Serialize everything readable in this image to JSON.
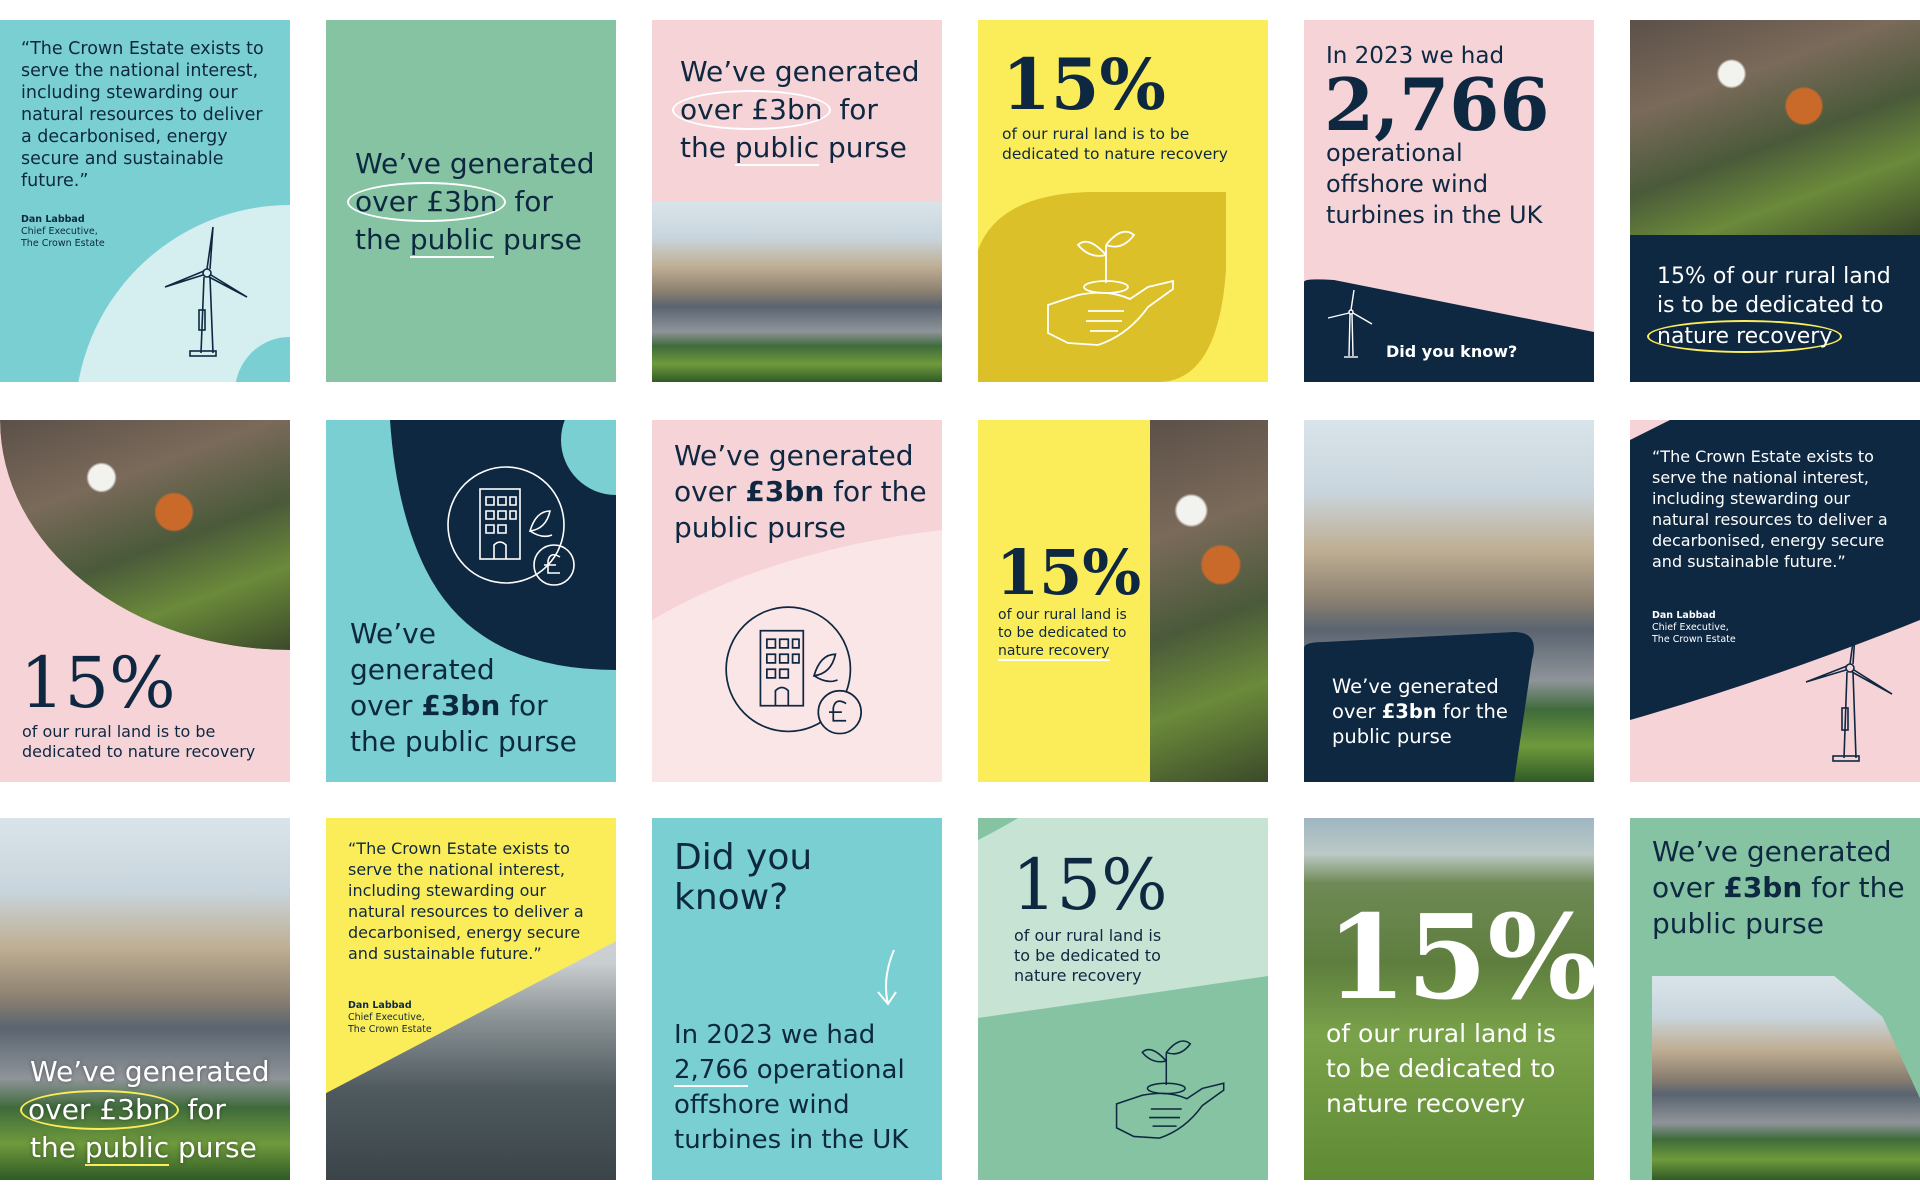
{
  "colors": {
    "navy": "#0e2841",
    "teal": "#7acfd3",
    "green": "#85c3a3",
    "pink": "#f5d3d7",
    "yellow": "#fbed5a",
    "mustard": "#dbc02a",
    "lightgreen": "#c7e3d4",
    "lightpink": "#fbe6e7",
    "lightteal": "#d5eef0"
  },
  "quote": {
    "text": "“The Crown Estate exists to serve the national interest, including stewarding our natural resources to deliver a decarbonised, energy secure and sustainable future.”",
    "name": "Dan Labbad",
    "role": "Chief Executive,",
    "org": "The Crown Estate"
  },
  "generated": {
    "l1": "We’ve generated",
    "l2a": "over £3bn",
    "l2b": " for",
    "l3a": "the ",
    "l3b": "public",
    "l3c": " purse",
    "bold_pre": "over ",
    "bold": "£3bn",
    "bold_post": " for the",
    "last": "public purse",
    "v1": "We’ve",
    "v2": "generated",
    "v3a": "over ",
    "v3b": "£3bn",
    "v3c": " for",
    "v4": "the public purse"
  },
  "nature": {
    "pct": "15%",
    "line1": "of our rural land is to be",
    "line2": "dedicated to nature recovery",
    "a": "of our rural land is",
    "b": "to be dedicated to",
    "c": "nature recovery",
    "wide_a": "15% of our rural land",
    "wide_b": "is to be dedicated to",
    "wide_c": "nature recovery",
    "big_a": "of our rural land is",
    "big_b": "to be dedicated to",
    "big_c": "nature recovery"
  },
  "turbines": {
    "intro": "In 2023 we had",
    "count": "2,766",
    "l1": "operational",
    "l2": "offshore wind",
    "l3": "turbines in the UK",
    "dyk": "Did you know?",
    "dyk1": "Did you",
    "dyk2": "know?",
    "alt_a": "In 2023 we had",
    "alt_b": "2,766",
    "alt_c": " operational",
    "alt_d": "offshore wind",
    "alt_e": "turbines in the UK"
  },
  "icons": [
    "wind-turbine-icon",
    "plant-in-hand-icon",
    "building-pound-icon",
    "arrow-down-icon"
  ]
}
